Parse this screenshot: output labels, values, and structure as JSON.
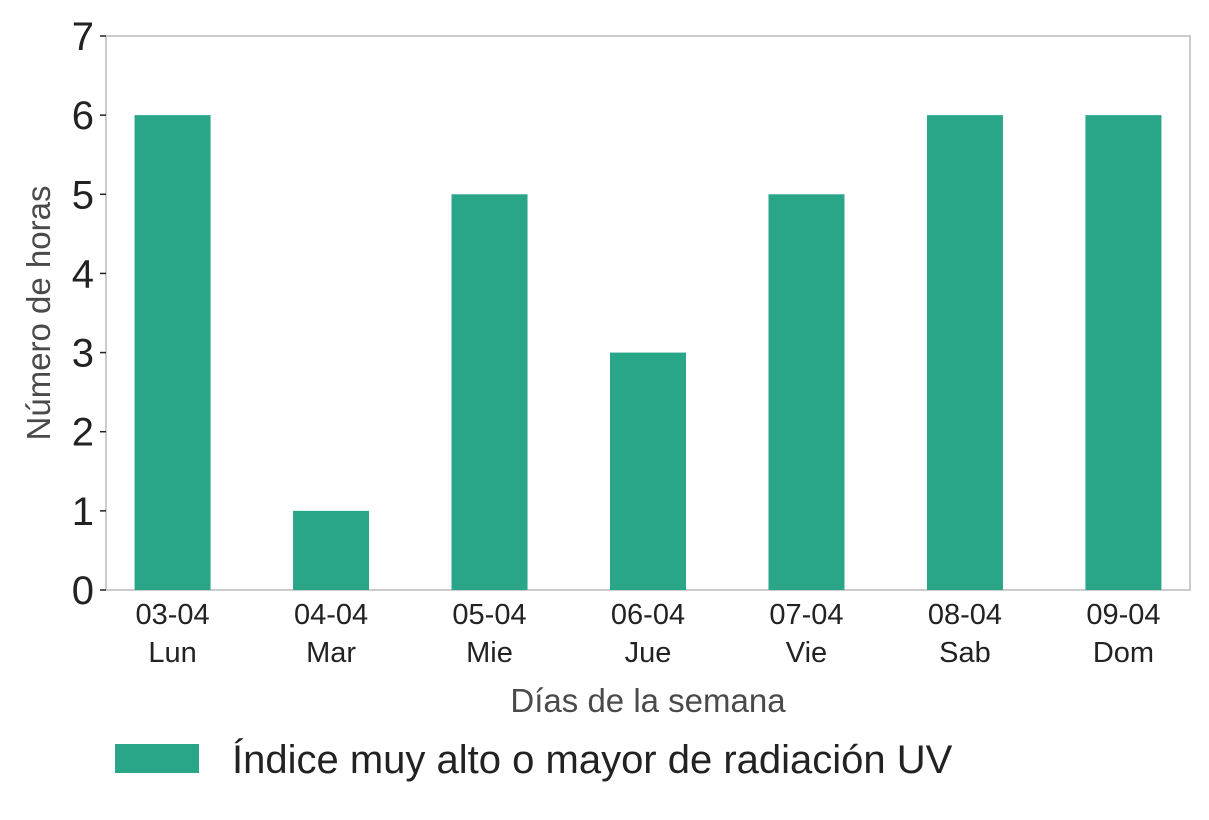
{
  "chart_data": {
    "type": "bar",
    "categories": [
      [
        "03-04",
        "Lun"
      ],
      [
        "04-04",
        "Mar"
      ],
      [
        "05-04",
        "Mie"
      ],
      [
        "06-04",
        "Jue"
      ],
      [
        "07-04",
        "Vie"
      ],
      [
        "08-04",
        "Sab"
      ],
      [
        "09-04",
        "Dom"
      ]
    ],
    "series": [
      {
        "name": "Índice muy alto o mayor de radiación UV",
        "values": [
          6,
          1,
          5,
          3,
          5,
          6,
          6
        ],
        "color": "#29a687"
      }
    ],
    "xlabel": "Días de la semana",
    "ylabel": "Número de horas",
    "ylim": [
      0,
      7
    ],
    "yticks": [
      0,
      1,
      2,
      3,
      4,
      5,
      6,
      7
    ],
    "grid": false,
    "legend_position": "bottom"
  }
}
